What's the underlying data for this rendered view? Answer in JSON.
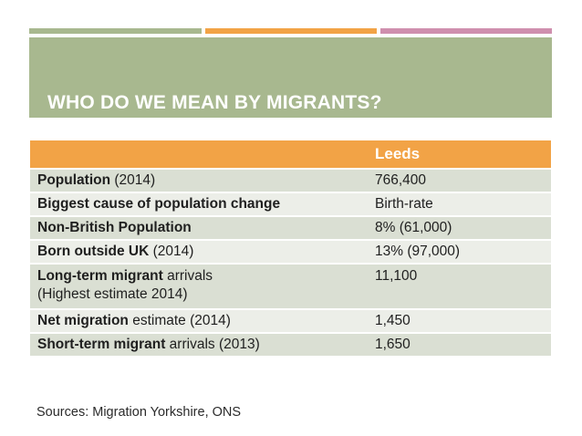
{
  "accent_colors": {
    "green": "#a8b88f",
    "orange": "#f2a346",
    "pink": "#cf8fae"
  },
  "slide": {
    "title": "WHO DO WE MEAN BY MIGRANTS?",
    "sources": "Sources: Migration Yorkshire, ONS"
  },
  "table": {
    "column_header": "Leeds",
    "rows": [
      {
        "label_bold": "Population",
        "label_rest": " (2014)",
        "label_line2": "",
        "value": "766,400"
      },
      {
        "label_bold": "Biggest cause of population change",
        "label_rest": "",
        "label_line2": "",
        "value": "Birth-rate"
      },
      {
        "label_bold": "Non-British Population",
        "label_rest": "",
        "label_line2": "",
        "value": "8% (61,000)"
      },
      {
        "label_bold": "Born outside UK",
        "label_rest": " (2014)",
        "label_line2": "",
        "value": "13% (97,000)"
      },
      {
        "label_bold": "Long-term migrant",
        "label_rest": " arrivals",
        "label_line2": "(Highest estimate 2014)",
        "value": "11,100"
      },
      {
        "label_bold": "Net migration",
        "label_rest": " estimate (2014)",
        "label_line2": "",
        "value": "1,450"
      },
      {
        "label_bold": "Short-term migrant",
        "label_rest": " arrivals (2013)",
        "label_line2": "",
        "value": "1,650"
      }
    ]
  }
}
